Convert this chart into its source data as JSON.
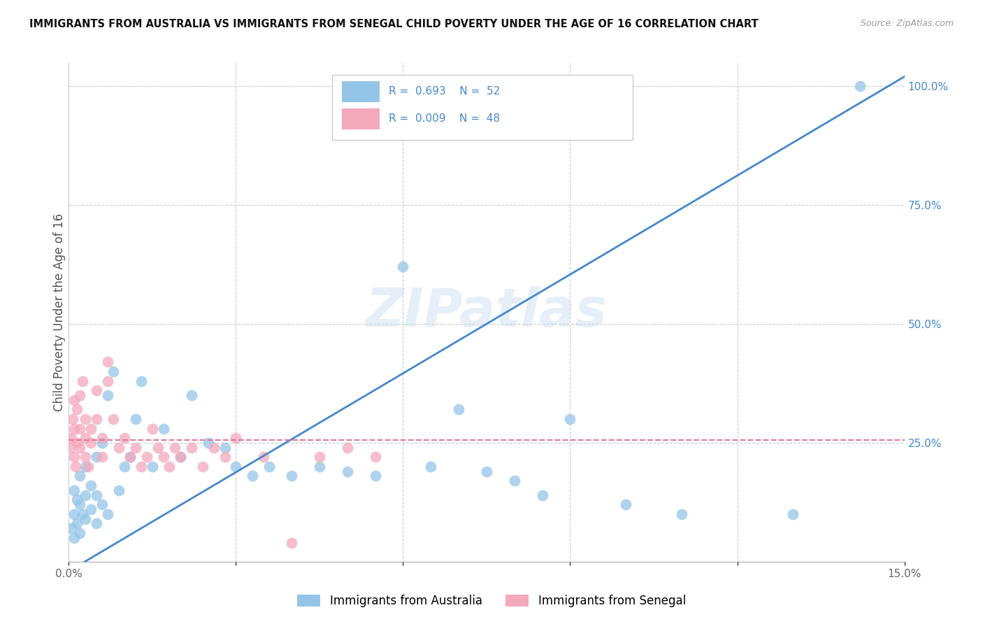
{
  "title": "IMMIGRANTS FROM AUSTRALIA VS IMMIGRANTS FROM SENEGAL CHILD POVERTY UNDER THE AGE OF 16 CORRELATION CHART",
  "source": "Source: ZipAtlas.com",
  "ylabel": "Child Poverty Under the Age of 16",
  "xlim": [
    0.0,
    0.15
  ],
  "ylim": [
    0.0,
    1.05
  ],
  "australia_color": "#94c5e8",
  "senegal_color": "#f4a8bc",
  "australia_line_color": "#4488cc",
  "senegal_line_color": "#e07898",
  "R_australia": 0.693,
  "N_australia": 52,
  "R_senegal": 0.009,
  "N_senegal": 48,
  "watermark": "ZIPatlas",
  "aus_line_x0": 0.0,
  "aus_line_y0": -0.02,
  "aus_line_x1": 0.15,
  "aus_line_y1": 1.02,
  "sen_line_x0": 0.0,
  "sen_line_y0": 0.255,
  "sen_line_x1": 0.15,
  "sen_line_y1": 0.255,
  "australia_scatter_x": [
    0.0005,
    0.001,
    0.001,
    0.001,
    0.0015,
    0.0015,
    0.002,
    0.002,
    0.002,
    0.0025,
    0.003,
    0.003,
    0.003,
    0.004,
    0.004,
    0.005,
    0.005,
    0.005,
    0.006,
    0.006,
    0.007,
    0.007,
    0.008,
    0.009,
    0.01,
    0.011,
    0.012,
    0.013,
    0.015,
    0.017,
    0.02,
    0.022,
    0.025,
    0.028,
    0.03,
    0.033,
    0.036,
    0.04,
    0.045,
    0.05,
    0.055,
    0.06,
    0.065,
    0.07,
    0.075,
    0.08,
    0.085,
    0.09,
    0.1,
    0.11,
    0.13,
    0.142
  ],
  "australia_scatter_y": [
    0.07,
    0.05,
    0.1,
    0.15,
    0.08,
    0.13,
    0.06,
    0.12,
    0.18,
    0.1,
    0.09,
    0.14,
    0.2,
    0.11,
    0.16,
    0.08,
    0.14,
    0.22,
    0.12,
    0.25,
    0.1,
    0.35,
    0.4,
    0.15,
    0.2,
    0.22,
    0.3,
    0.38,
    0.2,
    0.28,
    0.22,
    0.35,
    0.25,
    0.24,
    0.2,
    0.18,
    0.2,
    0.18,
    0.2,
    0.19,
    0.18,
    0.62,
    0.2,
    0.32,
    0.19,
    0.17,
    0.14,
    0.3,
    0.12,
    0.1,
    0.1,
    1.0
  ],
  "senegal_scatter_x": [
    0.0003,
    0.0005,
    0.0007,
    0.001,
    0.001,
    0.001,
    0.0012,
    0.0015,
    0.0015,
    0.002,
    0.002,
    0.002,
    0.0025,
    0.003,
    0.003,
    0.003,
    0.0035,
    0.004,
    0.004,
    0.005,
    0.005,
    0.006,
    0.006,
    0.007,
    0.007,
    0.008,
    0.009,
    0.01,
    0.011,
    0.012,
    0.013,
    0.014,
    0.015,
    0.016,
    0.017,
    0.018,
    0.019,
    0.02,
    0.022,
    0.024,
    0.026,
    0.028,
    0.03,
    0.035,
    0.04,
    0.045,
    0.05,
    0.055
  ],
  "senegal_scatter_y": [
    0.24,
    0.26,
    0.3,
    0.22,
    0.28,
    0.34,
    0.2,
    0.25,
    0.32,
    0.24,
    0.28,
    0.35,
    0.38,
    0.22,
    0.26,
    0.3,
    0.2,
    0.25,
    0.28,
    0.3,
    0.36,
    0.22,
    0.26,
    0.38,
    0.42,
    0.3,
    0.24,
    0.26,
    0.22,
    0.24,
    0.2,
    0.22,
    0.28,
    0.24,
    0.22,
    0.2,
    0.24,
    0.22,
    0.24,
    0.2,
    0.24,
    0.22,
    0.26,
    0.22,
    0.04,
    0.22,
    0.24,
    0.22
  ]
}
